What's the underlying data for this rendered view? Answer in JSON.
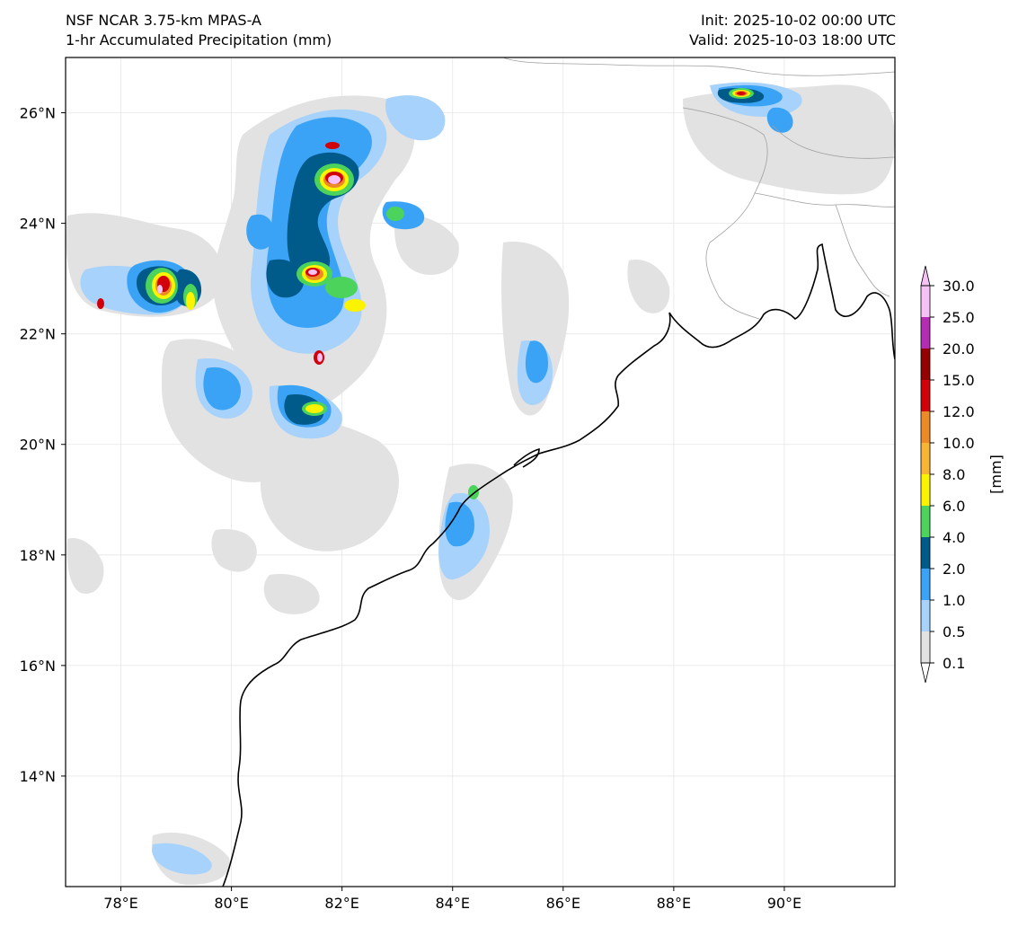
{
  "header": {
    "left_line1": "NSF NCAR 3.75-km MPAS-A",
    "left_line2": "1-hr Accumulated Precipitation (mm)",
    "right_line1": "Init: 2025-10-02 00:00 UTC",
    "right_line2": "Valid: 2025-10-03 18:00 UTC"
  },
  "axes": {
    "lon_labels": [
      "78°E",
      "80°E",
      "82°E",
      "84°E",
      "86°E",
      "88°E",
      "90°E"
    ],
    "lat_labels": [
      "26°N",
      "24°N",
      "22°N",
      "20°N",
      "18°N",
      "16°N",
      "14°N"
    ],
    "lon_values": [
      78,
      80,
      82,
      84,
      86,
      88,
      90
    ],
    "lat_values": [
      26,
      24,
      22,
      20,
      18,
      16,
      14
    ],
    "lon_range": [
      77.0,
      92.0
    ],
    "lat_range": [
      12.0,
      27.0
    ]
  },
  "colorbar": {
    "label": "[mm]",
    "levels": [
      "0.1",
      "0.5",
      "1.0",
      "2.0",
      "4.0",
      "6.0",
      "8.0",
      "10.0",
      "12.0",
      "15.0",
      "20.0",
      "25.0",
      "30.0"
    ],
    "colors": [
      "#e2e2e2",
      "#a6d2fb",
      "#3aa3f5",
      "#005a8a",
      "#4cd35c",
      "#fbf300",
      "#f8b534",
      "#ec8a28",
      "#d2000a",
      "#950000",
      "#b32cb1",
      "#f6c2f5"
    ],
    "extend": "both"
  },
  "colors": {
    "coastline": "#000000",
    "border": "#a0a0a0",
    "grid": "#e6e6e6"
  }
}
